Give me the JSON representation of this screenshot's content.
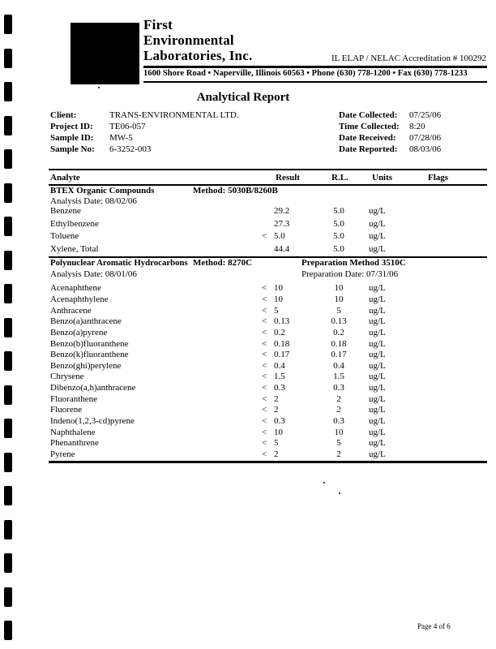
{
  "scan": {
    "hole_count": 19,
    "ink": "#000000",
    "paper": "#ffffff"
  },
  "header": {
    "company_lines": [
      "First",
      "Environmental",
      "Laboratories, Inc."
    ],
    "accreditation": "IL ELAP / NELAC Accreditation # 100292",
    "address": "1600 Shore Road • Naperville, Illinois 60563 • Phone (630) 778-1200 • Fax (630) 778-1233"
  },
  "title": "Analytical Report",
  "info": {
    "left": [
      {
        "label": "Client:",
        "value": "TRANS-ENVIRONMENTAL LTD."
      },
      {
        "label": "Project ID:",
        "value": "TE06-057"
      },
      {
        "label": "Sample ID:",
        "value": "MW-5"
      },
      {
        "label": "Sample No:",
        "value": "6-3252-003"
      }
    ],
    "right": [
      {
        "label": "Date Collected:",
        "value": "07/25/06"
      },
      {
        "label": "Time Collected:",
        "value": "8:20"
      },
      {
        "label": "Date Received:",
        "value": "07/28/06"
      },
      {
        "label": "Date Reported:",
        "value": "08/03/06"
      }
    ]
  },
  "table": {
    "columns": [
      "Analyte",
      "Result",
      "R.L.",
      "Units",
      "Flags"
    ],
    "sections": [
      {
        "name": "BTEX Organic Compounds",
        "method": "Method: 5030B/8260B",
        "analysis_date": "Analysis Date: 08/02/06",
        "prep_method": "",
        "prep_date": "",
        "style": "btex",
        "rows": [
          {
            "name": "Benzene",
            "lt": "",
            "result": "29.2",
            "rl": "5.0",
            "units": "ug/L",
            "flags": ""
          },
          {
            "name": "Ethylbenzene",
            "lt": "",
            "result": "27.3",
            "rl": "5.0",
            "units": "ug/L",
            "flags": ""
          },
          {
            "name": "Toluene",
            "lt": "<",
            "result": "5.0",
            "rl": "5.0",
            "units": "ug/L",
            "flags": ""
          },
          {
            "name": "Xylene, Total",
            "lt": "",
            "result": "44.4",
            "rl": "5.0",
            "units": "ug/L",
            "flags": ""
          }
        ]
      },
      {
        "name": "Polynuclear Aromatic Hydrocarbons",
        "method": "Method: 8270C",
        "analysis_date": "Analysis Date: 08/01/06",
        "prep_method": "Preparation Method 3510C",
        "prep_date": "Preparation Date: 07/31/06",
        "style": "pah",
        "rows": [
          {
            "name": "Acenaphthene",
            "lt": "<",
            "result": "10",
            "rl": "10",
            "units": "ug/L",
            "flags": ""
          },
          {
            "name": "Acenaphthylene",
            "lt": "<",
            "result": "10",
            "rl": "10",
            "units": "ug/L",
            "flags": ""
          },
          {
            "name": "Anthracene",
            "lt": "<",
            "result": "5",
            "rl": "5",
            "units": "ug/L",
            "flags": ""
          },
          {
            "name": "Benzo(a)anthracene",
            "lt": "<",
            "result": "0.13",
            "rl": "0.13",
            "units": "ug/L",
            "flags": ""
          },
          {
            "name": "Benzo(a)pyrene",
            "lt": "<",
            "result": "0.2",
            "rl": "0.2",
            "units": "ug/L",
            "flags": ""
          },
          {
            "name": "Benzo(b)fluoranthene",
            "lt": "<",
            "result": "0.18",
            "rl": "0.18",
            "units": "ug/L",
            "flags": ""
          },
          {
            "name": "Benzo(k)fluoranthene",
            "lt": "<",
            "result": "0.17",
            "rl": "0.17",
            "units": "ug/L",
            "flags": ""
          },
          {
            "name": "Benzo(ghi)perylene",
            "lt": "<",
            "result": "0.4",
            "rl": "0.4",
            "units": "ug/L",
            "flags": ""
          },
          {
            "name": "Chrysene",
            "lt": "<",
            "result": "1.5",
            "rl": "1.5",
            "units": "ug/L",
            "flags": ""
          },
          {
            "name": "Dibenzo(a,h)anthracene",
            "lt": "<",
            "result": "0.3",
            "rl": "0.3",
            "units": "ug/L",
            "flags": ""
          },
          {
            "name": "Fluoranthene",
            "lt": "<",
            "result": "2",
            "rl": "2",
            "units": "ug/L",
            "flags": ""
          },
          {
            "name": "Fluorene",
            "lt": "<",
            "result": "2",
            "rl": "2",
            "units": "ug/L",
            "flags": ""
          },
          {
            "name": "Indeno(1,2,3-cd)pyrene",
            "lt": "<",
            "result": "0.3",
            "rl": "0.3",
            "units": "ug/L",
            "flags": ""
          },
          {
            "name": "Naphthalene",
            "lt": "<",
            "result": "10",
            "rl": "10",
            "units": "ug/L",
            "flags": ""
          },
          {
            "name": "Phenanthrene",
            "lt": "<",
            "result": "5",
            "rl": "5",
            "units": "ug/L",
            "flags": ""
          },
          {
            "name": "Pyrene",
            "lt": "<",
            "result": "2",
            "rl": "2",
            "units": "ug/L",
            "flags": ""
          }
        ]
      }
    ]
  },
  "footer": {
    "page_label": "Page 4 of 6"
  }
}
